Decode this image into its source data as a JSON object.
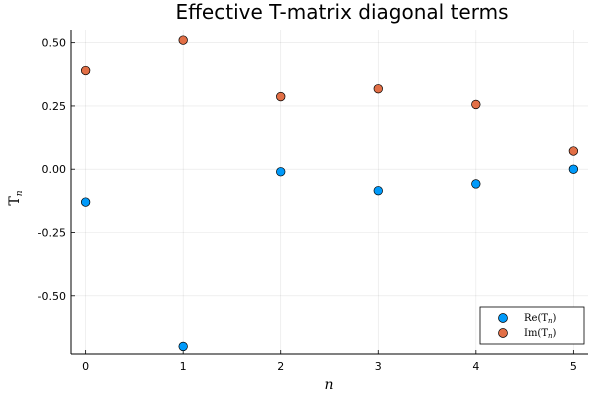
{
  "chart_data": {
    "type": "scatter",
    "title": "Effective T-matrix diagonal terms",
    "xlabel": "n",
    "ylabel": "T",
    "ylabel_sub": "n",
    "xlim": [
      -0.15,
      5.15
    ],
    "ylim": [
      -0.73,
      0.55
    ],
    "xticks": [
      0,
      1,
      2,
      3,
      4,
      5
    ],
    "yticks": [
      0.5,
      0.25,
      0.0,
      -0.25,
      -0.5
    ],
    "ytick_labels": [
      "0.50",
      "0.25",
      "0.00",
      "-0.25",
      "-0.50"
    ],
    "grid": true,
    "legend_position": "bottom-right",
    "x": [
      0,
      1,
      2,
      3,
      4,
      5
    ],
    "series": [
      {
        "name": "Re(T",
        "name_sub": "n",
        "name_end": ")",
        "color": "#009AFA",
        "values": [
          -0.13,
          -0.7,
          -0.01,
          -0.085,
          -0.058,
          0.0
        ]
      },
      {
        "name": "Im(T",
        "name_sub": "n",
        "name_end": ")",
        "color": "#E26F46",
        "values": [
          0.39,
          0.51,
          0.287,
          0.318,
          0.256,
          0.072
        ]
      }
    ]
  }
}
